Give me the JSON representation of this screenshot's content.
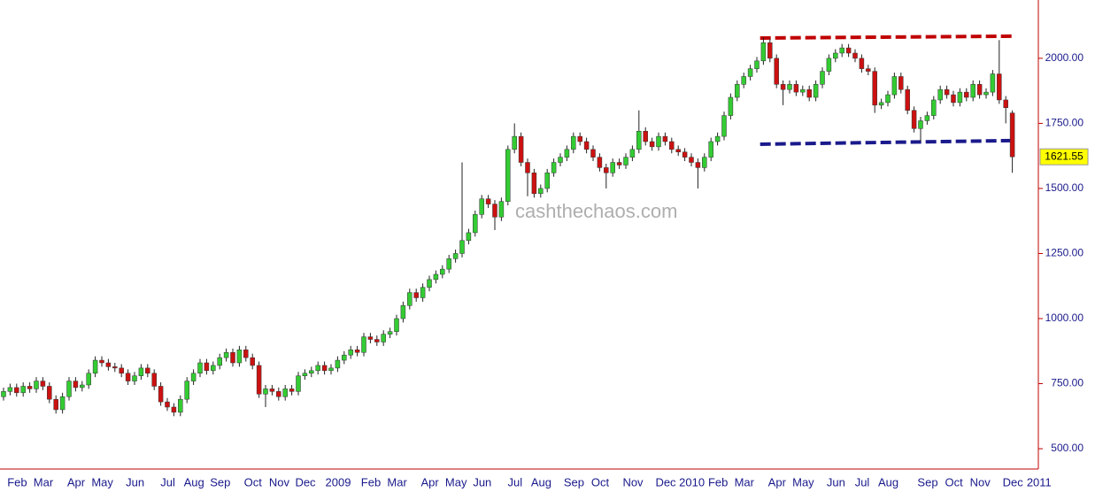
{
  "chart_data": {
    "type": "candlestick",
    "watermark": "cashthechaos.com",
    "categories": [
      null,
      "Feb",
      null,
      null,
      null,
      "Mar",
      null,
      null,
      null,
      null,
      "Apr",
      null,
      null,
      null,
      "May",
      null,
      null,
      null,
      null,
      "Jun",
      null,
      null,
      null,
      null,
      "Jul",
      null,
      null,
      null,
      "Aug",
      null,
      null,
      null,
      "Sep",
      null,
      null,
      null,
      null,
      "Oct",
      null,
      null,
      null,
      "Nov",
      null,
      null,
      null,
      "Dec",
      null,
      null,
      null,
      null,
      "2009",
      null,
      null,
      null,
      null,
      "Feb",
      null,
      null,
      null,
      "Mar",
      null,
      null,
      null,
      null,
      "Apr",
      null,
      null,
      null,
      "May",
      null,
      null,
      null,
      "Jun",
      null,
      null,
      null,
      null,
      "Jul",
      null,
      null,
      null,
      "Aug",
      null,
      null,
      null,
      null,
      "Sep",
      null,
      null,
      null,
      "Oct",
      null,
      null,
      null,
      null,
      "Nov",
      null,
      null,
      null,
      null,
      "Dec",
      null,
      null,
      null,
      "2010",
      null,
      null,
      null,
      "Feb",
      null,
      null,
      null,
      "Mar",
      null,
      null,
      null,
      null,
      "Apr",
      null,
      null,
      null,
      "May",
      null,
      null,
      null,
      null,
      "Jun",
      null,
      null,
      null,
      "Jul",
      null,
      null,
      null,
      "Aug",
      null,
      null,
      null,
      null,
      null,
      "Sep",
      null,
      null,
      null,
      "Oct",
      null,
      null,
      null,
      "Nov",
      null,
      null,
      null,
      null,
      "Dec",
      null,
      null,
      null,
      "2011",
      null
    ],
    "open": [
      700,
      720,
      735,
      715,
      740,
      730,
      760,
      740,
      690,
      650,
      700,
      760,
      735,
      745,
      790,
      840,
      830,
      815,
      810,
      790,
      760,
      780,
      810,
      790,
      740,
      680,
      660,
      640,
      690,
      760,
      790,
      830,
      800,
      820,
      850,
      870,
      830,
      880,
      850,
      820,
      710,
      730,
      720,
      700,
      730,
      720,
      780,
      790,
      800,
      820,
      800,
      810,
      840,
      860,
      880,
      870,
      930,
      920,
      910,
      940,
      950,
      1000,
      1050,
      1100,
      1080,
      1120,
      1150,
      1170,
      1190,
      1230,
      1250,
      1300,
      1330,
      1400,
      1460,
      1440,
      1390,
      1450,
      1650,
      1700,
      1600,
      1560,
      1480,
      1500,
      1560,
      1600,
      1620,
      1650,
      1700,
      1680,
      1650,
      1620,
      1580,
      1560,
      1600,
      1590,
      1620,
      1650,
      1720,
      1680,
      1660,
      1700,
      1680,
      1650,
      1640,
      1620,
      1600,
      1580,
      1620,
      1680,
      1700,
      1780,
      1850,
      1900,
      1930,
      1960,
      1990,
      2060,
      2000,
      1900,
      1880,
      1900,
      1870,
      1880,
      1850,
      1900,
      1950,
      2000,
      2020,
      2040,
      2020,
      2000,
      1960,
      1950,
      1820,
      1830,
      1860,
      1930,
      1880,
      1800,
      1730,
      1760,
      1780,
      1840,
      1880,
      1860,
      1830,
      1870,
      1850,
      1900,
      1860,
      1870,
      1940,
      1840,
      1790,
      null,
      null,
      null,
      null
    ],
    "high": [
      735,
      750,
      750,
      755,
      755,
      775,
      775,
      755,
      705,
      715,
      775,
      775,
      760,
      805,
      855,
      855,
      845,
      830,
      825,
      805,
      795,
      825,
      825,
      805,
      755,
      695,
      675,
      705,
      775,
      805,
      845,
      845,
      835,
      865,
      885,
      885,
      895,
      895,
      865,
      835,
      745,
      745,
      735,
      745,
      745,
      795,
      805,
      815,
      835,
      835,
      825,
      855,
      875,
      895,
      895,
      945,
      945,
      935,
      955,
      965,
      1015,
      1065,
      1115,
      1115,
      1135,
      1165,
      1185,
      1205,
      1245,
      1265,
      1600,
      1345,
      1415,
      1475,
      1475,
      1455,
      1465,
      1665,
      1750,
      1715,
      1615,
      1575,
      1515,
      1575,
      1615,
      1635,
      1665,
      1715,
      1715,
      1695,
      1665,
      1635,
      1595,
      1615,
      1615,
      1635,
      1665,
      1800,
      1735,
      1695,
      1715,
      1715,
      1695,
      1665,
      1655,
      1635,
      1615,
      1635,
      1695,
      1715,
      1795,
      1865,
      1915,
      1945,
      1975,
      2005,
      2080,
      2075,
      2015,
      1915,
      1915,
      1915,
      1895,
      1895,
      1915,
      1965,
      2015,
      2035,
      2055,
      2055,
      2035,
      2015,
      1975,
      1965,
      1845,
      1875,
      1945,
      1945,
      1895,
      1815,
      1775,
      1795,
      1855,
      1895,
      1895,
      1875,
      1885,
      1885,
      1915,
      1915,
      1885,
      1955,
      2070,
      1855,
      1800,
      null,
      null,
      null,
      null
    ],
    "low": [
      685,
      705,
      700,
      700,
      715,
      715,
      725,
      675,
      635,
      635,
      685,
      720,
      720,
      730,
      775,
      815,
      800,
      795,
      775,
      745,
      745,
      765,
      775,
      725,
      665,
      645,
      625,
      625,
      675,
      745,
      775,
      785,
      785,
      805,
      835,
      815,
      815,
      835,
      805,
      695,
      660,
      705,
      685,
      685,
      705,
      705,
      765,
      775,
      785,
      785,
      785,
      795,
      825,
      845,
      855,
      855,
      905,
      895,
      895,
      925,
      935,
      985,
      1035,
      1065,
      1065,
      1105,
      1135,
      1155,
      1175,
      1215,
      1235,
      1285,
      1315,
      1385,
      1425,
      1340,
      1375,
      1435,
      1635,
      1585,
      1470,
      1465,
      1465,
      1485,
      1545,
      1585,
      1605,
      1635,
      1665,
      1635,
      1605,
      1565,
      1500,
      1545,
      1575,
      1575,
      1605,
      1635,
      1665,
      1645,
      1645,
      1665,
      1635,
      1625,
      1605,
      1585,
      1500,
      1565,
      1605,
      1665,
      1685,
      1765,
      1835,
      1885,
      1915,
      1945,
      1975,
      1985,
      1885,
      1820,
      1865,
      1855,
      1855,
      1835,
      1835,
      1885,
      1935,
      1985,
      2005,
      2005,
      1985,
      1945,
      1935,
      1790,
      1805,
      1815,
      1845,
      1865,
      1785,
      1715,
      1680,
      1745,
      1765,
      1825,
      1845,
      1815,
      1815,
      1835,
      1835,
      1845,
      1845,
      1855,
      1825,
      1750,
      1560,
      null,
      null,
      null,
      null
    ],
    "close": [
      720,
      735,
      715,
      740,
      730,
      760,
      740,
      690,
      650,
      700,
      760,
      735,
      745,
      790,
      840,
      830,
      815,
      810,
      790,
      760,
      780,
      810,
      790,
      740,
      680,
      660,
      640,
      690,
      760,
      790,
      830,
      800,
      820,
      850,
      870,
      830,
      880,
      850,
      820,
      710,
      730,
      720,
      700,
      730,
      720,
      780,
      790,
      800,
      820,
      800,
      810,
      840,
      860,
      880,
      870,
      930,
      920,
      910,
      940,
      950,
      1000,
      1050,
      1100,
      1080,
      1120,
      1150,
      1170,
      1190,
      1230,
      1250,
      1300,
      1330,
      1400,
      1460,
      1440,
      1390,
      1450,
      1650,
      1700,
      1600,
      1560,
      1480,
      1500,
      1560,
      1600,
      1620,
      1650,
      1700,
      1680,
      1650,
      1620,
      1580,
      1560,
      1600,
      1590,
      1620,
      1650,
      1720,
      1680,
      1660,
      1700,
      1680,
      1650,
      1640,
      1620,
      1600,
      1580,
      1620,
      1680,
      1700,
      1780,
      1850,
      1900,
      1930,
      1960,
      1990,
      2060,
      2000,
      1900,
      1880,
      1900,
      1870,
      1880,
      1850,
      1900,
      1950,
      2000,
      2020,
      2040,
      2020,
      2000,
      1960,
      1950,
      1820,
      1830,
      1860,
      1930,
      1880,
      1800,
      1730,
      1760,
      1780,
      1840,
      1880,
      1860,
      1830,
      1870,
      1850,
      1900,
      1860,
      1870,
      1940,
      1840,
      1810,
      1621.55,
      null,
      null,
      null,
      null
    ],
    "up_color": "#33cc33",
    "down_color": "#cc1111",
    "last_price": 1621.55,
    "trendlines": [
      {
        "color": "#c00000",
        "values": [
          2078,
          2085
        ]
      },
      {
        "color": "#1a1a8c",
        "values": [
          1670,
          1684
        ]
      }
    ],
    "ylim": [
      422,
      2224
    ],
    "yticks": [
      {
        "value": 500,
        "label": "500.00"
      },
      {
        "value": 750,
        "label": "750.00"
      },
      {
        "value": 1000,
        "label": "1000.00"
      },
      {
        "value": 1250,
        "label": "1250.00"
      },
      {
        "value": 1500,
        "label": "1500.00"
      },
      {
        "value": 1750,
        "label": "1750.00"
      },
      {
        "value": 2000,
        "label": "2000.00"
      }
    ],
    "grid": false
  }
}
